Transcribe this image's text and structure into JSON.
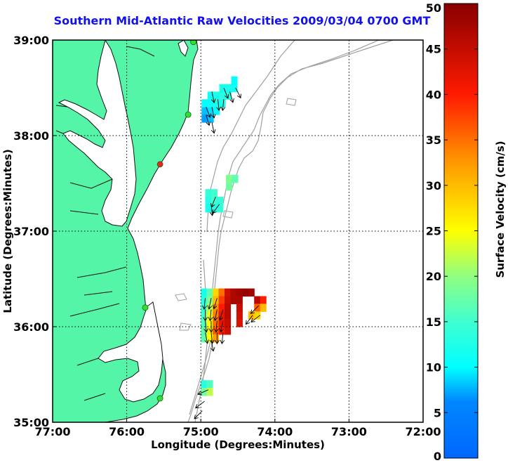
{
  "title": "Southern Mid-Atlantic Raw Velocities 2009/03/04 0700 GMT",
  "axes": {
    "xlabel": "Longitude (Degrees:Minutes)",
    "ylabel": "Latitude (Degrees:Minutes)",
    "xticks": [
      {
        "lon": -77,
        "label": "77:00"
      },
      {
        "lon": -76,
        "label": "76:00"
      },
      {
        "lon": -75,
        "label": "75:00"
      },
      {
        "lon": -74,
        "label": "74:00"
      },
      {
        "lon": -73,
        "label": "73:00"
      },
      {
        "lon": -72,
        "label": "72:00"
      }
    ],
    "yticks": [
      {
        "lat": 39,
        "label": "39:00"
      },
      {
        "lat": 38,
        "label": "38:00"
      },
      {
        "lat": 37,
        "label": "37:00"
      },
      {
        "lat": 36,
        "label": "36:00"
      },
      {
        "lat": 35,
        "label": "35:00"
      }
    ],
    "lon_range": [
      -77,
      -72
    ],
    "lat_range": [
      35,
      39
    ],
    "grid": "dotted"
  },
  "colorbar": {
    "label": "Surface Velocity (cm/s)",
    "range": [
      0,
      50
    ],
    "ticks": [
      {
        "value": 0,
        "label": "0"
      },
      {
        "value": 5,
        "label": "5"
      },
      {
        "value": 10,
        "label": "10"
      },
      {
        "value": 15,
        "label": "15"
      },
      {
        "value": 20,
        "label": "20"
      },
      {
        "value": 25,
        "label": "25"
      },
      {
        "value": 30,
        "label": "30"
      },
      {
        "value": 35,
        "label": "35"
      },
      {
        "value": 40,
        "label": "40"
      },
      {
        "value": 45,
        "label": "45"
      },
      {
        "value": 50,
        "label": "50"
      }
    ]
  },
  "colors": {
    "land": "#55f5a8",
    "coastline": "#111111",
    "bathymetry": "#a0a0a0",
    "title": "#1111ee"
  },
  "stations": [
    {
      "lon": -75.1,
      "lat": 38.98,
      "color": "#33dd33"
    },
    {
      "lon": -75.17,
      "lat": 38.22,
      "color": "#33dd33"
    },
    {
      "lon": -75.55,
      "lat": 37.7,
      "color": "#ee2222"
    },
    {
      "lon": -75.75,
      "lat": 36.2,
      "color": "#33dd33"
    },
    {
      "lon": -75.55,
      "lat": 35.25,
      "color": "#33dd33"
    }
  ],
  "chart_data": {
    "type": "heatmap",
    "title": "Southern Mid-Atlantic Raw Velocities 2009/03/04 0700 GMT",
    "xlabel": "Longitude (Degrees:Minutes)",
    "ylabel": "Latitude (Degrees:Minutes)",
    "value_label": "Surface Velocity (cm/s)",
    "value_range": [
      0,
      50
    ],
    "cells": [
      {
        "lon": -74.95,
        "lat": 38.26,
        "value": 8
      },
      {
        "lon": -74.87,
        "lat": 38.26,
        "value": 9
      },
      {
        "lon": -74.95,
        "lat": 38.34,
        "value": 10
      },
      {
        "lon": -74.87,
        "lat": 38.34,
        "value": 11
      },
      {
        "lon": -74.79,
        "lat": 38.34,
        "value": 12
      },
      {
        "lon": -74.71,
        "lat": 38.34,
        "value": 12
      },
      {
        "lon": -74.87,
        "lat": 38.42,
        "value": 11
      },
      {
        "lon": -74.79,
        "lat": 38.42,
        "value": 12
      },
      {
        "lon": -74.71,
        "lat": 38.42,
        "value": 13
      },
      {
        "lon": -74.63,
        "lat": 38.42,
        "value": 13
      },
      {
        "lon": -74.71,
        "lat": 38.5,
        "value": 12
      },
      {
        "lon": -74.63,
        "lat": 38.5,
        "value": 12
      },
      {
        "lon": -74.55,
        "lat": 38.5,
        "value": 11
      },
      {
        "lon": -74.55,
        "lat": 38.58,
        "value": 10
      },
      {
        "lon": -74.95,
        "lat": 38.18,
        "value": 7
      },
      {
        "lon": -74.87,
        "lat": 38.18,
        "value": 8
      },
      {
        "lon": -74.79,
        "lat": 38.26,
        "value": 10
      },
      {
        "lon": -74.62,
        "lat": 37.55,
        "value": 19
      },
      {
        "lon": -74.54,
        "lat": 37.55,
        "value": 17
      },
      {
        "lon": -74.62,
        "lat": 37.47,
        "value": 18
      },
      {
        "lon": -74.9,
        "lat": 37.4,
        "value": 14
      },
      {
        "lon": -74.82,
        "lat": 37.4,
        "value": 15
      },
      {
        "lon": -74.9,
        "lat": 37.32,
        "value": 13
      },
      {
        "lon": -74.82,
        "lat": 37.32,
        "value": 15
      },
      {
        "lon": -74.74,
        "lat": 37.32,
        "value": 14
      },
      {
        "lon": -74.9,
        "lat": 37.24,
        "value": 12
      },
      {
        "lon": -74.82,
        "lat": 37.24,
        "value": 13
      },
      {
        "lon": -74.74,
        "lat": 37.24,
        "value": 14
      },
      {
        "lon": -74.96,
        "lat": 36.36,
        "value": 12
      },
      {
        "lon": -74.88,
        "lat": 36.36,
        "value": 17
      },
      {
        "lon": -74.8,
        "lat": 36.36,
        "value": 28
      },
      {
        "lon": -74.72,
        "lat": 36.36,
        "value": 35
      },
      {
        "lon": -74.64,
        "lat": 36.36,
        "value": 44
      },
      {
        "lon": -74.56,
        "lat": 36.36,
        "value": 47
      },
      {
        "lon": -74.48,
        "lat": 36.36,
        "value": 48
      },
      {
        "lon": -74.4,
        "lat": 36.36,
        "value": 49
      },
      {
        "lon": -74.32,
        "lat": 36.36,
        "value": 48
      },
      {
        "lon": -74.96,
        "lat": 36.28,
        "value": 13
      },
      {
        "lon": -74.88,
        "lat": 36.28,
        "value": 19
      },
      {
        "lon": -74.8,
        "lat": 36.28,
        "value": 30
      },
      {
        "lon": -74.72,
        "lat": 36.28,
        "value": 38
      },
      {
        "lon": -74.64,
        "lat": 36.28,
        "value": 45
      },
      {
        "lon": -74.56,
        "lat": 36.28,
        "value": 47
      },
      {
        "lon": -74.48,
        "lat": 36.28,
        "value": 47
      },
      {
        "lon": -74.24,
        "lat": 36.28,
        "value": 46
      },
      {
        "lon": -74.16,
        "lat": 36.28,
        "value": 40
      },
      {
        "lon": -74.96,
        "lat": 36.2,
        "value": 14
      },
      {
        "lon": -74.88,
        "lat": 36.2,
        "value": 22
      },
      {
        "lon": -74.8,
        "lat": 36.2,
        "value": 33
      },
      {
        "lon": -74.72,
        "lat": 36.2,
        "value": 40
      },
      {
        "lon": -74.64,
        "lat": 36.2,
        "value": 46
      },
      {
        "lon": -74.48,
        "lat": 36.2,
        "value": 45
      },
      {
        "lon": -74.24,
        "lat": 36.2,
        "value": 36
      },
      {
        "lon": -74.16,
        "lat": 36.2,
        "value": 30
      },
      {
        "lon": -74.96,
        "lat": 36.12,
        "value": 15
      },
      {
        "lon": -74.88,
        "lat": 36.12,
        "value": 24
      },
      {
        "lon": -74.8,
        "lat": 36.12,
        "value": 34
      },
      {
        "lon": -74.72,
        "lat": 36.12,
        "value": 42
      },
      {
        "lon": -74.64,
        "lat": 36.12,
        "value": 46
      },
      {
        "lon": -74.48,
        "lat": 36.12,
        "value": 44
      },
      {
        "lon": -74.32,
        "lat": 36.12,
        "value": 30
      },
      {
        "lon": -74.24,
        "lat": 36.12,
        "value": 28
      },
      {
        "lon": -74.96,
        "lat": 36.04,
        "value": 16
      },
      {
        "lon": -74.88,
        "lat": 36.04,
        "value": 25
      },
      {
        "lon": -74.8,
        "lat": 36.04,
        "value": 35
      },
      {
        "lon": -74.72,
        "lat": 36.04,
        "value": 42
      },
      {
        "lon": -74.64,
        "lat": 36.04,
        "value": 45
      },
      {
        "lon": -74.48,
        "lat": 36.04,
        "value": 43
      },
      {
        "lon": -74.96,
        "lat": 35.96,
        "value": 17
      },
      {
        "lon": -74.88,
        "lat": 35.96,
        "value": 26
      },
      {
        "lon": -74.8,
        "lat": 35.96,
        "value": 36
      },
      {
        "lon": -74.72,
        "lat": 35.96,
        "value": 40
      },
      {
        "lon": -74.64,
        "lat": 35.96,
        "value": 44
      },
      {
        "lon": -74.96,
        "lat": 35.88,
        "value": 17
      },
      {
        "lon": -74.88,
        "lat": 35.88,
        "value": 25
      },
      {
        "lon": -74.8,
        "lat": 35.88,
        "value": 32
      },
      {
        "lon": -74.96,
        "lat": 35.4,
        "value": 13
      },
      {
        "lon": -74.88,
        "lat": 35.4,
        "value": 16
      },
      {
        "lon": -74.96,
        "lat": 35.32,
        "value": 18
      },
      {
        "lon": -74.88,
        "lat": 35.32,
        "value": 22
      }
    ],
    "vectors": [
      {
        "lon": -74.93,
        "lat": 38.3,
        "u": 0.4,
        "v": -1
      },
      {
        "lon": -74.85,
        "lat": 38.3,
        "u": 0.2,
        "v": -1
      },
      {
        "lon": -74.77,
        "lat": 38.38,
        "u": 0.1,
        "v": -1
      },
      {
        "lon": -74.69,
        "lat": 38.38,
        "u": -0.1,
        "v": -1
      },
      {
        "lon": -74.61,
        "lat": 38.46,
        "u": 0.3,
        "v": -1
      },
      {
        "lon": -74.53,
        "lat": 38.5,
        "u": 0.5,
        "v": -1
      },
      {
        "lon": -74.85,
        "lat": 38.46,
        "u": 0.2,
        "v": -1
      },
      {
        "lon": -74.69,
        "lat": 38.5,
        "u": 0.4,
        "v": -1
      },
      {
        "lon": -74.93,
        "lat": 38.22,
        "u": 0.3,
        "v": -1
      },
      {
        "lon": -74.85,
        "lat": 38.14,
        "u": 0.2,
        "v": -1
      },
      {
        "lon": -74.8,
        "lat": 37.36,
        "u": -0.4,
        "v": -1
      },
      {
        "lon": -74.75,
        "lat": 37.28,
        "u": -0.6,
        "v": -0.8
      },
      {
        "lon": -74.86,
        "lat": 37.28,
        "u": 0.1,
        "v": -1
      },
      {
        "lon": -74.94,
        "lat": 36.3,
        "u": -0.1,
        "v": -1
      },
      {
        "lon": -74.86,
        "lat": 36.3,
        "u": -0.2,
        "v": -1
      },
      {
        "lon": -74.78,
        "lat": 36.3,
        "u": -0.3,
        "v": -1
      },
      {
        "lon": -74.94,
        "lat": 36.18,
        "u": 0,
        "v": -1
      },
      {
        "lon": -74.86,
        "lat": 36.18,
        "u": -0.1,
        "v": -1
      },
      {
        "lon": -74.78,
        "lat": 36.18,
        "u": -0.2,
        "v": -1
      },
      {
        "lon": -74.7,
        "lat": 36.18,
        "u": -0.3,
        "v": -1
      },
      {
        "lon": -74.94,
        "lat": 36.06,
        "u": 0.1,
        "v": -1
      },
      {
        "lon": -74.86,
        "lat": 36.06,
        "u": 0,
        "v": -1
      },
      {
        "lon": -74.78,
        "lat": 36.06,
        "u": -0.1,
        "v": -1
      },
      {
        "lon": -74.7,
        "lat": 36.06,
        "u": -0.2,
        "v": -1
      },
      {
        "lon": -74.94,
        "lat": 35.94,
        "u": 0.2,
        "v": -1
      },
      {
        "lon": -74.86,
        "lat": 35.94,
        "u": 0.1,
        "v": -1
      },
      {
        "lon": -74.78,
        "lat": 35.94,
        "u": 0,
        "v": -1
      },
      {
        "lon": -74.7,
        "lat": 35.94,
        "u": -0.1,
        "v": -1
      },
      {
        "lon": -74.86,
        "lat": 35.86,
        "u": 0.2,
        "v": -1
      },
      {
        "lon": -74.3,
        "lat": 36.12,
        "u": -0.6,
        "v": -0.8
      },
      {
        "lon": -74.2,
        "lat": 36.12,
        "u": -0.8,
        "v": -0.6
      },
      {
        "lon": -74.22,
        "lat": 36.22,
        "u": -0.7,
        "v": -0.7
      },
      {
        "lon": -74.9,
        "lat": 35.34,
        "u": -0.9,
        "v": -0.4
      },
      {
        "lon": -74.95,
        "lat": 35.22,
        "u": -0.8,
        "v": -0.6
      },
      {
        "lon": -74.98,
        "lat": 35.12,
        "u": -0.7,
        "v": -0.7
      }
    ]
  }
}
